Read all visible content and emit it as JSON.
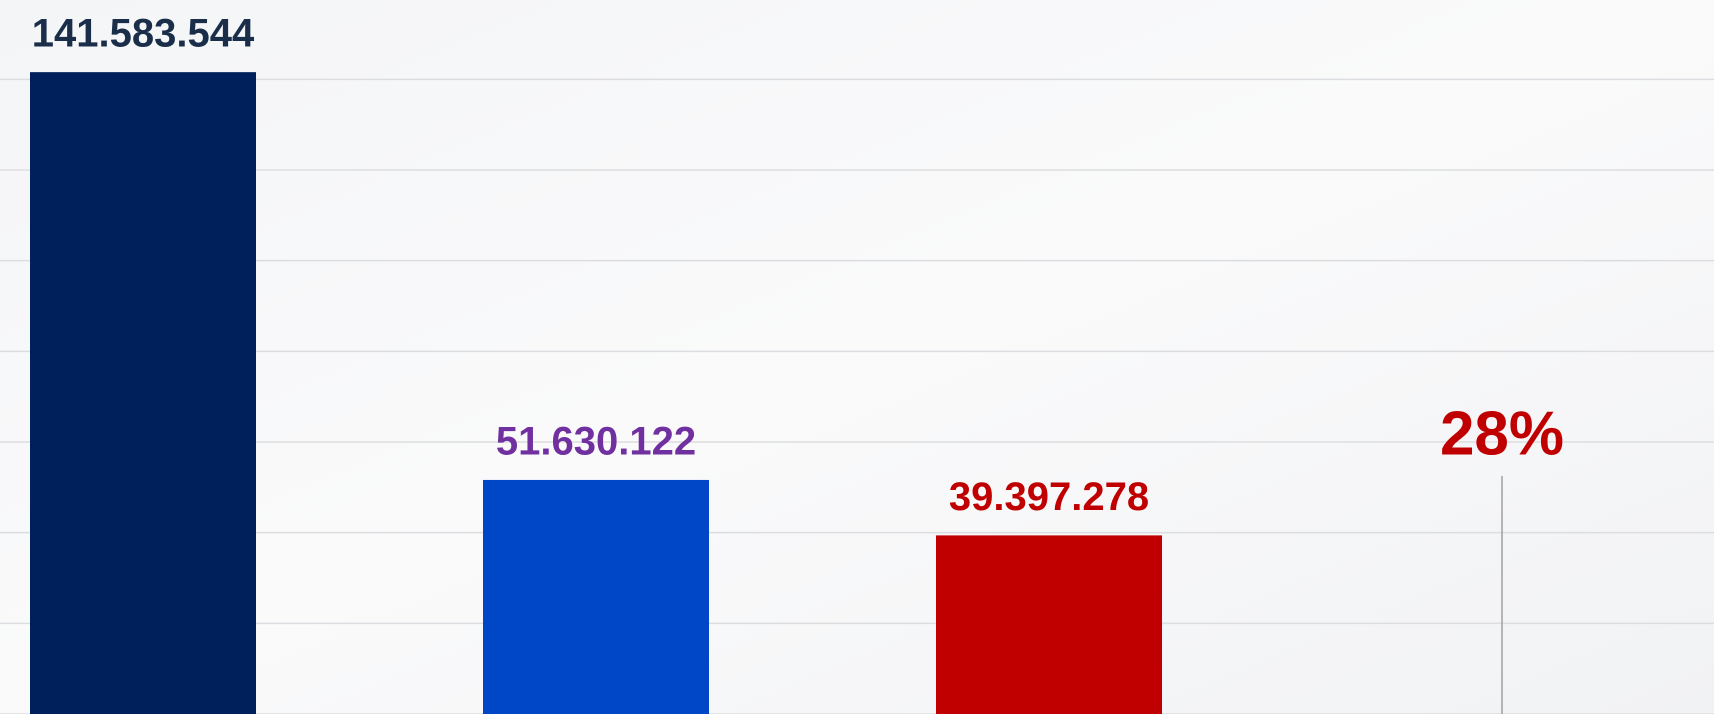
{
  "chart_data": {
    "type": "bar",
    "categories": [
      null,
      null,
      null
    ],
    "values": [
      141583544,
      51630122,
      39397278
    ],
    "value_labels": [
      "141.583.544",
      "51.630.122",
      "39.397.278"
    ],
    "colors": [
      "#00205b",
      "#0047c8",
      "#c00000"
    ],
    "label_colors": [
      "#1a2e4a",
      "#7030a0",
      "#c00000"
    ],
    "annotation": "28%",
    "annotation_color": "#c00000",
    "ylim": [
      0,
      157500000
    ],
    "yticks": [
      0,
      20000000,
      40000000,
      60000000,
      80000000,
      100000000,
      120000000,
      140000000
    ],
    "grid": true
  }
}
